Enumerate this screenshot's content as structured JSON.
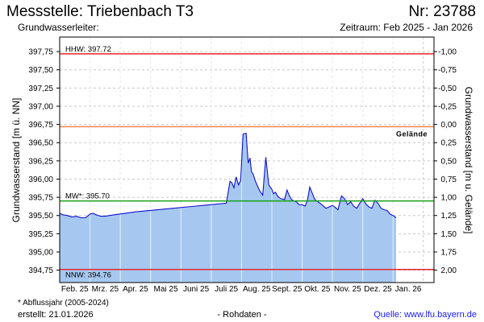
{
  "header": {
    "title": "Messstelle: Triebenbach T3",
    "number": "Nr: 23788",
    "aquifer": "Grundwasserleiter:",
    "period": "Zeitraum: Feb 2025 - Jan 2026"
  },
  "footer": {
    "footnote": "* Abflussjahr (2005-2024)",
    "created": "erstellt:  21.01.2026",
    "raw_data": "- Rohdaten -",
    "source": "Quelle:  www.lfu.bayern.de"
  },
  "chart_data": {
    "type": "area",
    "ylabel_left": "Grundwasserstand [m ü. NN]",
    "ylabel_right": "Grundwasserstand [m u. Gelände]",
    "ylim": [
      394.58,
      397.95
    ],
    "left_ticks": [
      "394,75",
      "395,00",
      "395,25",
      "395,50",
      "395,75",
      "396,00",
      "396,25",
      "396,50",
      "396,75",
      "397,00",
      "397,25",
      "397,50",
      "397,75"
    ],
    "right_ticks": [
      "2,00",
      "1,75",
      "1,50",
      "1,25",
      "1,00",
      "0,75",
      "0,50",
      "0,25",
      "0,00",
      "-0,25",
      "-0,50",
      "-0,75",
      "-1,00"
    ],
    "xlim": [
      0,
      12.35
    ],
    "x_ticks": [
      "Feb. 25",
      "Mrz. 25",
      "Apr. 25",
      "Mai 25",
      "Juni 25",
      "Juli 25",
      "Aug. 25",
      "Sept. 25",
      "Okt. 25",
      "Nov. 25",
      "Dez. 25",
      "Jan. 26"
    ],
    "grid": true,
    "reference_lines": [
      {
        "label": "HHW: 397.72",
        "value": 397.72,
        "color": "#e8262a"
      },
      {
        "label": "Gelände",
        "value": 396.72,
        "color": "#f0834a"
      },
      {
        "label": "MW*: 395.70",
        "value": 395.7,
        "color": "#15a015"
      },
      {
        "label": "NNW: 394.76",
        "value": 394.76,
        "color": "#e8262a"
      }
    ],
    "series": [
      {
        "line_color": "#1010d0",
        "fill_color": "#a6c8f0",
        "x": [
          0.0,
          0.1,
          0.25,
          0.4,
          0.55,
          0.7,
          0.85,
          1.0,
          1.1,
          1.2,
          1.35,
          1.5,
          1.8,
          2.5,
          3.5,
          4.5,
          5.5,
          5.62,
          5.68,
          5.75,
          5.82,
          5.9,
          5.97,
          6.05,
          6.15,
          6.22,
          6.28,
          6.33,
          6.38,
          6.45,
          6.52,
          6.6,
          6.7,
          6.8,
          6.9,
          7.0,
          7.05,
          7.12,
          7.2,
          7.3,
          7.42,
          7.5,
          7.58,
          7.65,
          7.72,
          7.8,
          7.9,
          8.0,
          8.1,
          8.18,
          8.25,
          8.32,
          8.42,
          8.55,
          8.65,
          8.78,
          8.9,
          9.0,
          9.1,
          9.18,
          9.3,
          9.4,
          9.5,
          9.6,
          9.7,
          9.8,
          9.9,
          10.0,
          10.1,
          10.2,
          10.3,
          10.4,
          10.5,
          10.6,
          10.7,
          10.8,
          10.9,
          11.0,
          11.1
        ],
        "y": [
          395.53,
          395.51,
          395.5,
          395.48,
          395.49,
          395.47,
          395.47,
          395.52,
          395.53,
          395.51,
          395.49,
          395.49,
          395.51,
          395.55,
          395.59,
          395.63,
          395.67,
          395.97,
          395.95,
          395.88,
          396.03,
          395.92,
          395.98,
          396.62,
          396.63,
          396.22,
          396.29,
          396.1,
          396.07,
          395.98,
          395.91,
          395.84,
          395.78,
          396.3,
          395.92,
          395.86,
          395.8,
          395.82,
          395.76,
          395.73,
          395.72,
          395.85,
          395.77,
          395.72,
          395.7,
          395.69,
          395.65,
          395.65,
          395.63,
          395.72,
          395.89,
          395.82,
          395.72,
          395.68,
          395.65,
          395.6,
          395.62,
          395.64,
          395.61,
          395.58,
          395.77,
          395.73,
          395.65,
          395.69,
          395.63,
          395.6,
          395.67,
          395.73,
          395.66,
          395.62,
          395.6,
          395.71,
          395.67,
          395.6,
          395.58,
          395.57,
          395.52,
          395.5,
          395.47
        ]
      }
    ]
  }
}
